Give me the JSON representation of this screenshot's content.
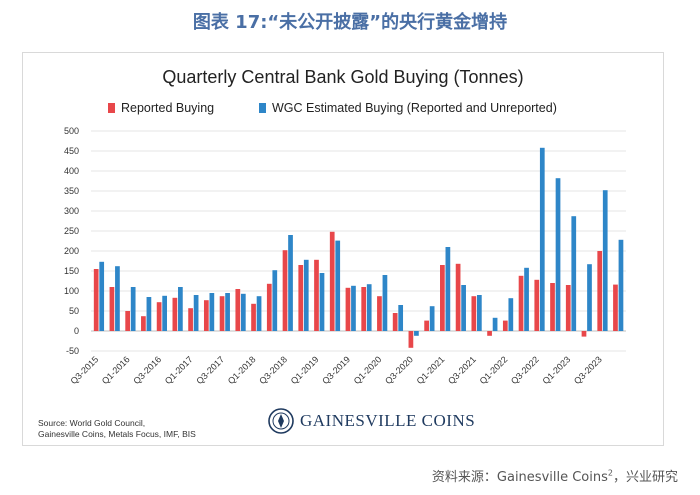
{
  "figure_title": "图表 17:“未公开披露”的央行黄金增持",
  "footer": {
    "prefix": "资料来源：Gainesville Coins",
    "superscript": "2",
    "suffix": "，兴业研究"
  },
  "source_note": {
    "line1": "Source: World Gold Council,",
    "line2": "Gainesville Coins, Metals Focus, IMF, BIS"
  },
  "logo": {
    "text": "GAINESVILLE COINS"
  },
  "colors": {
    "reported": "#e8474a",
    "wgc": "#2e86c8",
    "title": "#4a6fa5"
  },
  "chart_data": {
    "type": "bar",
    "title": "Quarterly Central Bank Gold Buying (Tonnes)",
    "xlabel": "",
    "ylabel": "",
    "ylim": [
      -50,
      500
    ],
    "yticks": [
      500,
      450,
      400,
      350,
      300,
      250,
      200,
      150,
      100,
      50,
      0,
      -50
    ],
    "legend_position": "top",
    "categories": [
      "Q3-2015",
      "Q4-2015",
      "Q1-2016",
      "Q2-2016",
      "Q3-2016",
      "Q4-2016",
      "Q1-2017",
      "Q2-2017",
      "Q3-2017",
      "Q4-2017",
      "Q1-2018",
      "Q2-2018",
      "Q3-2018",
      "Q4-2018",
      "Q1-2019",
      "Q2-2019",
      "Q3-2019",
      "Q4-2019",
      "Q1-2020",
      "Q2-2020",
      "Q3-2020",
      "Q4-2020",
      "Q1-2021",
      "Q2-2021",
      "Q3-2021",
      "Q4-2021",
      "Q1-2022",
      "Q2-2022",
      "Q3-2022",
      "Q4-2022",
      "Q1-2023",
      "Q2-2023",
      "Q3-2023",
      "Q4-2023"
    ],
    "tick_labels": [
      "Q3-2015",
      "Q1-2016",
      "Q3-2016",
      "Q1-2017",
      "Q3-2017",
      "Q1-2018",
      "Q3-2018",
      "Q1-2019",
      "Q3-2019",
      "Q1-2020",
      "Q3-2020",
      "Q1-2021",
      "Q3-2021",
      "Q1-2022",
      "Q3-2022",
      "Q1-2023",
      "Q3-2023"
    ],
    "series": [
      {
        "name": "Reported Buying",
        "values": [
          155,
          110,
          50,
          37,
          72,
          83,
          57,
          77,
          87,
          105,
          68,
          118,
          202,
          165,
          178,
          248,
          108,
          110,
          87,
          45,
          -42,
          26,
          165,
          168,
          87,
          -12,
          26,
          138,
          128,
          120,
          115,
          -14,
          200,
          116
        ]
      },
      {
        "name": "WGC Estimated Buying (Reported and Unreported)",
        "values": [
          173,
          162,
          110,
          85,
          88,
          110,
          90,
          95,
          95,
          93,
          87,
          152,
          240,
          178,
          145,
          226,
          113,
          117,
          140,
          65,
          -12,
          62,
          210,
          115,
          90,
          33,
          82,
          158,
          458,
          382,
          287,
          167,
          352,
          228
        ]
      }
    ]
  }
}
